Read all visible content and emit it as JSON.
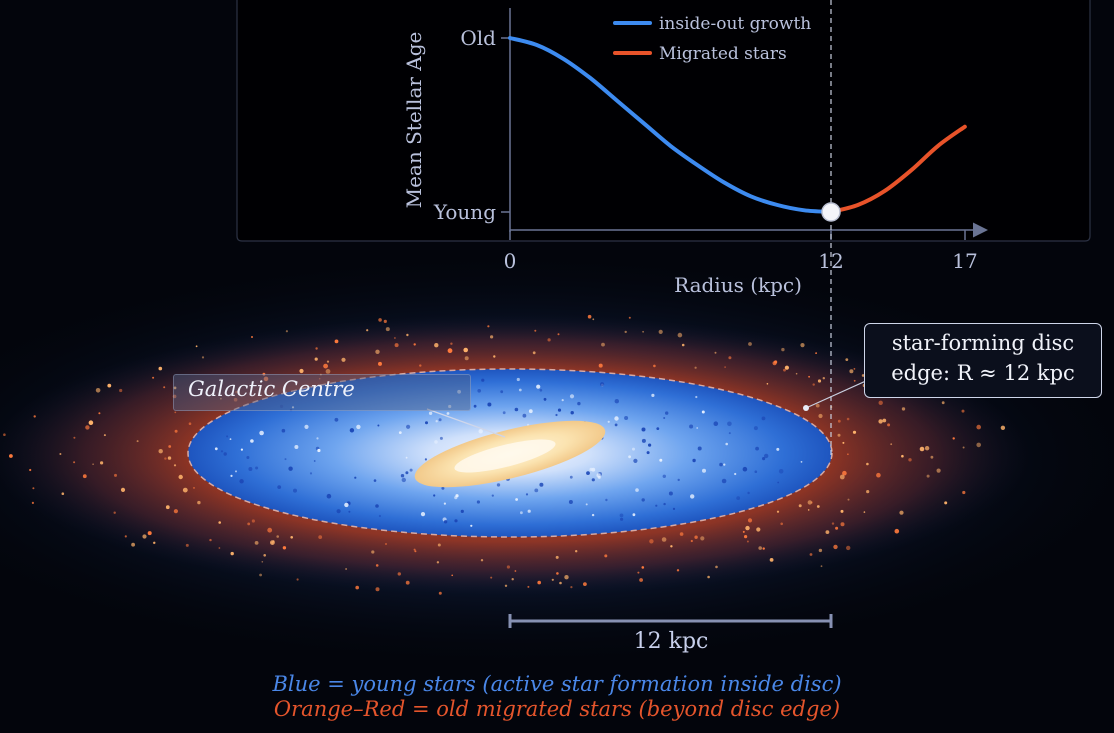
{
  "chart_data": {
    "type": "line",
    "ylabel": "Mean Stellar Age",
    "xlabel": "Radius (kpc)",
    "y_ticks": [
      "Old",
      "Young"
    ],
    "x_ticks": [
      "0",
      "12",
      "17"
    ],
    "x_range": [
      0,
      17
    ],
    "marker_x": 12,
    "series": [
      {
        "name": "inside-out growth",
        "color": "#3d8bf0",
        "x": [
          0,
          1,
          2,
          3,
          4,
          5,
          6,
          7,
          8,
          9,
          10,
          11,
          12
        ],
        "y": [
          1.0,
          0.96,
          0.88,
          0.77,
          0.64,
          0.51,
          0.38,
          0.27,
          0.17,
          0.09,
          0.04,
          0.01,
          0.0
        ]
      },
      {
        "name": "Migrated stars",
        "color": "#e8532a",
        "x": [
          12,
          13,
          14,
          15,
          16,
          17
        ],
        "y": [
          0.0,
          0.04,
          0.12,
          0.24,
          0.38,
          0.49
        ]
      }
    ]
  },
  "annotations": {
    "disc_edge_line1": "star-forming disc",
    "disc_edge_line2": "edge: R ≈ 12 kpc",
    "centre_label": "Galactic Centre",
    "scale_bar_label": "12 kpc",
    "caption_blue": "Blue = young stars (active star formation inside disc)",
    "caption_orange": "Orange–Red = old migrated stars (beyond disc edge)"
  },
  "colors": {
    "young": "#3d8bf0",
    "old": "#e8532a",
    "caption_blue": "#4a87e8",
    "caption_orange": "#e5552c"
  }
}
